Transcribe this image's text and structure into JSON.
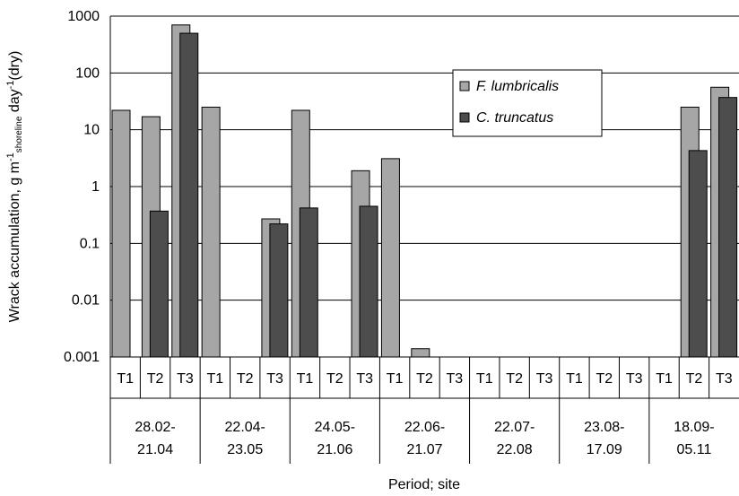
{
  "chart_data": {
    "type": "bar",
    "yscale": "log",
    "ylim": [
      0.001,
      1000
    ],
    "yticks": [
      "1000",
      "100",
      "10",
      "1",
      "0.1",
      "0.01",
      "0.001"
    ],
    "ylabel_main": "Wrack accumulation, g m",
    "ylabel_sup1": "-1",
    "ylabel_sub": "shoreline",
    "ylabel_mid": " day",
    "ylabel_sup2": "-1",
    "ylabel_end": "(dry)",
    "xlabel": "Period; site",
    "periods": [
      {
        "line1": "28.02-",
        "line2": "21.04"
      },
      {
        "line1": "22.04-",
        "line2": "23.05"
      },
      {
        "line1": "24.05-",
        "line2": "21.06"
      },
      {
        "line1": "22.06-",
        "line2": "21.07"
      },
      {
        "line1": "22.07-",
        "line2": "22.08"
      },
      {
        "line1": "23.08-",
        "line2": "17.09"
      },
      {
        "line1": "18.09-",
        "line2": "05.11"
      }
    ],
    "sites": [
      "T1",
      "T2",
      "T3"
    ],
    "series": [
      {
        "name": "F. lumbricalis",
        "color": "#a6a6a6",
        "values": [
          22,
          17,
          700,
          25,
          null,
          0.27,
          22,
          null,
          1.9,
          3.1,
          0.0014,
          null,
          null,
          null,
          null,
          null,
          null,
          null,
          null,
          25,
          56
        ]
      },
      {
        "name": "C. truncatus",
        "color": "#4d4d4d",
        "values": [
          null,
          0.37,
          500,
          null,
          null,
          0.22,
          0.42,
          null,
          0.45,
          null,
          null,
          null,
          null,
          null,
          null,
          null,
          null,
          null,
          null,
          4.3,
          37
        ]
      }
    ],
    "grid": true,
    "legend_position": "top-right"
  }
}
